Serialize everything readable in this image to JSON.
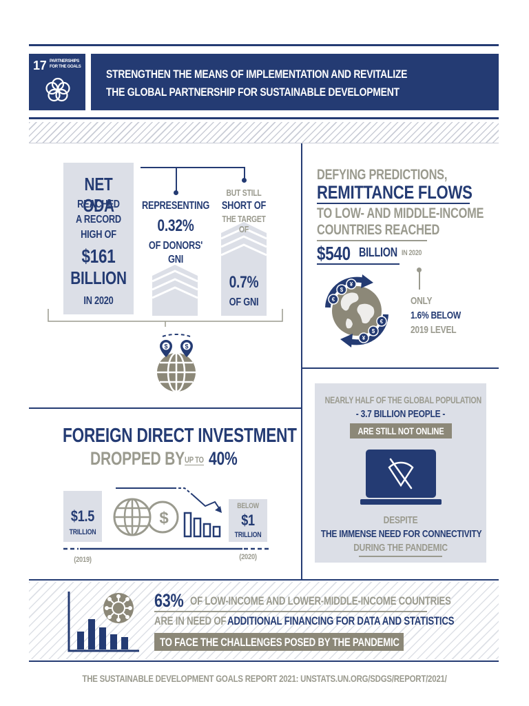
{
  "colors": {
    "navy": "#243b73",
    "gray": "#9a9a8e",
    "panel": "#dcdfe7",
    "olive": "#8c8878"
  },
  "header": {
    "goal_number": "17",
    "goal_label_line1": "PARTNERSHIPS",
    "goal_label_line2": "FOR THE GOALS",
    "goal_icon": "flower-rings-icon",
    "title_line1": "STRENGTHEN THE MEANS OF IMPLEMENTATION AND REVITALIZE",
    "title_line2": "THE GLOBAL PARTNERSHIP FOR SUSTAINABLE DEVELOPMENT"
  },
  "oda": {
    "title": "NET ODA",
    "reached_l1": "REACHED",
    "reached_l2": "A RECORD",
    "reached_l3": "HIGH OF",
    "amount": "$161",
    "unit": "BILLION",
    "year": "IN 2020",
    "representing": "REPRESENTING",
    "share": "0.32%",
    "share_l1": "OF DONORS'",
    "share_l2": "GNI",
    "still_l1": "BUT STILL",
    "still_l2": "SHORT OF",
    "still_l3": "THE TARGET OF",
    "target": "0.7%",
    "target_unit": "OF GNI",
    "icon": "globe-money-pins-icon"
  },
  "remittance": {
    "line1": "DEFYING PREDICTIONS,",
    "line2": "REMITTANCE FLOWS",
    "line3": "TO LOW- AND MIDDLE-INCOME",
    "line4": "COUNTRIES REACHED",
    "amount": "$540",
    "unit": "BILLION",
    "year": "IN 2020",
    "only": "ONLY",
    "below": "1.6% BELOW",
    "level": "2019 LEVEL",
    "icon": "globe-currency-arrows-icon"
  },
  "fdi": {
    "title": "FOREIGN DIRECT INVESTMENT",
    "dropped": "DROPPED BY",
    "up_to": "UP TO",
    "pct": "40%",
    "left_value": "$1.5",
    "left_unit": "TRILLION",
    "left_year": "(2019)",
    "right_below": "BELOW",
    "right_value": "$1",
    "right_unit": "TRILLION",
    "right_year": "(2020)",
    "icon": "globe-coin-declining-bars-icon"
  },
  "internet": {
    "line1": "NEARLY HALF OF THE GLOBAL POPULATION",
    "line2": "- 3.7 BILLION PEOPLE -",
    "line3": "ARE STILL NOT ONLINE",
    "despite": "DESPITE",
    "need": "THE IMMENSE NEED FOR CONNECTIVITY",
    "pandemic": "DURING THE PANDEMIC",
    "icon": "laptop-no-wifi-icon"
  },
  "data_stats": {
    "pct": "63%",
    "line1": "OF LOW-INCOME AND LOWER-MIDDLE-INCOME COUNTRIES",
    "line2a": "ARE IN NEED OF",
    "line2b": "ADDITIONAL FINANCING FOR DATA AND STATISTICS",
    "line3": "TO FACE THE CHALLENGES POSED BY THE PANDEMIC",
    "icon": "virus-bar-chart-icon"
  },
  "footer": {
    "source": "THE SUSTAINABLE DEVELOPMENT GOALS REPORT 2021: UNSTATS.UN.ORG/SDGS/REPORT/2021/"
  }
}
